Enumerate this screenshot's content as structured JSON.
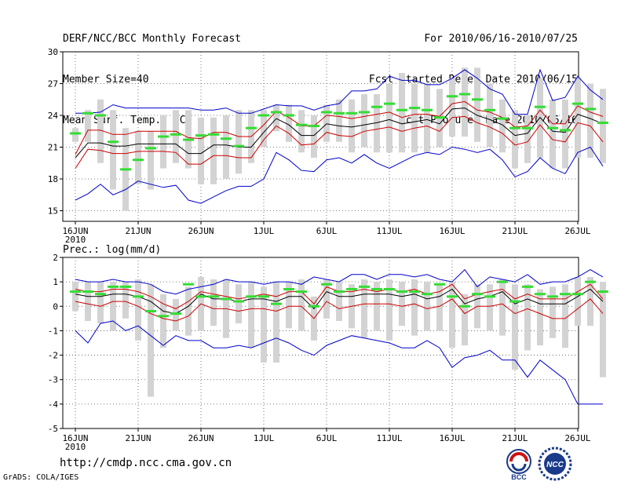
{
  "header": {
    "title": "DERF/NCC/BCC Monthly Forecast",
    "member_size": "Member Size=40",
    "variable_temp": "Mean Surf. Temp.: °C",
    "forecast_period": "For 2010/06/16-2010/07/25",
    "started_refer": "Fcst Started Refer Date 2010/06/15",
    "produced": "Fcst Produced Date 2010/06/16"
  },
  "footer": {
    "url": "http://cmdp.ncc.cma.gov.cn",
    "credit": "GrADS: COLA/IGES",
    "logo_left_text": "BCC",
    "logo_right_text": "NCC"
  },
  "colors": {
    "max_min": "#0000cc",
    "std": "#cc0000",
    "mean": "#000000",
    "median": "#33dd33",
    "box": "#d3d3d3"
  },
  "chart_data": [
    {
      "type": "line",
      "id": "temp",
      "title": "Mean Surf. Temp.: °C",
      "xlabel": "",
      "ylabel": "°C",
      "ylim": [
        14,
        30
      ],
      "yticks": [
        15,
        18,
        21,
        24,
        27,
        30
      ],
      "x_ticks": [
        "16JUN",
        "21JUN",
        "26JUN",
        "1JUL",
        "6JUL",
        "11JUL",
        "16JUL",
        "21JUL",
        "26JUL"
      ],
      "x_year": "2010",
      "grid": true,
      "series": [
        {
          "name": "max",
          "values": [
            16.0,
            16.6,
            17.5,
            16.5,
            17.0,
            17.8,
            17.5,
            17.2,
            17.4,
            16.0,
            15.7,
            16.3,
            16.9,
            17.3,
            17.3,
            18.0,
            20.5,
            19.8,
            18.8,
            18.7,
            19.8,
            20.0,
            19.5,
            20.3,
            19.5,
            19.0,
            19.6,
            20.2,
            20.5,
            20.3,
            21.0,
            20.8,
            20.5,
            20.8,
            19.8,
            18.2,
            18.7,
            20.0,
            19.0,
            18.5,
            20.5,
            21.0,
            19.2
          ]
        },
        {
          "name": "plus_std",
          "values": [
            20.3,
            22.6,
            22.6,
            22.2,
            22.2,
            22.5,
            22.5,
            22.5,
            22.5,
            21.9,
            21.8,
            22.4,
            22.4,
            22.0,
            22.0,
            23.1,
            24.4,
            23.8,
            23.0,
            23.0,
            24.0,
            23.9,
            23.7,
            23.9,
            24.1,
            24.3,
            23.8,
            24.1,
            24.1,
            23.9,
            25.1,
            25.3,
            24.5,
            24.3,
            23.8,
            22.9,
            23.0,
            24.5,
            23.2,
            23.2,
            24.9,
            24.3,
            23.9
          ]
        },
        {
          "name": "mean",
          "values": [
            20.0,
            21.4,
            21.4,
            21.1,
            21.1,
            21.3,
            21.3,
            21.3,
            21.3,
            20.4,
            20.4,
            21.2,
            21.2,
            21.0,
            21.0,
            22.4,
            23.7,
            23.1,
            22.1,
            22.1,
            23.2,
            23.0,
            22.9,
            23.1,
            23.3,
            23.6,
            23.2,
            23.4,
            23.6,
            23.2,
            24.6,
            24.7,
            24.0,
            23.6,
            23.1,
            22.1,
            22.3,
            23.8,
            22.5,
            22.4,
            24.1,
            23.7,
            23.2
          ]
        },
        {
          "name": "minus_std",
          "values": [
            19.0,
            20.8,
            20.7,
            20.4,
            20.4,
            20.6,
            20.6,
            20.6,
            20.5,
            19.4,
            19.4,
            20.2,
            20.2,
            20.0,
            20.0,
            21.7,
            23.0,
            22.3,
            21.2,
            21.3,
            22.4,
            22.1,
            22.0,
            22.5,
            22.7,
            22.9,
            22.5,
            22.8,
            23.0,
            22.5,
            23.8,
            23.9,
            23.3,
            22.9,
            22.3,
            21.2,
            21.5,
            23.1,
            21.7,
            21.5,
            23.3,
            23.0,
            21.5
          ]
        },
        {
          "name": "min",
          "values": [
            24.2,
            24.2,
            24.3,
            25.0,
            24.7,
            24.7,
            24.7,
            24.7,
            24.7,
            24.7,
            24.5,
            24.5,
            24.7,
            24.2,
            24.2,
            24.6,
            25.0,
            24.9,
            24.9,
            24.5,
            24.9,
            25.1,
            26.3,
            26.3,
            26.5,
            27.7,
            27.3,
            27.3,
            26.9,
            26.9,
            27.5,
            28.3,
            27.5,
            26.5,
            26.0,
            24.1,
            24.1,
            28.3,
            25.4,
            25.7,
            27.7,
            26.4,
            25.5
          ]
        },
        {
          "name": "median",
          "values": [
            22.3,
            24.2,
            24.0,
            21.5,
            18.9,
            19.8,
            20.9,
            22.0,
            22.2,
            21.7,
            22.1,
            22.2,
            21.8,
            21.1,
            22.8,
            24.0,
            24.3,
            24.0,
            23.1,
            23.0,
            24.3,
            24.2,
            24.2,
            24.3,
            24.8,
            25.1,
            24.5,
            24.7,
            24.5,
            23.8,
            25.8,
            26.0,
            25.5,
            24.5,
            23.7,
            22.8,
            22.8,
            24.8,
            22.8,
            22.6,
            25.1,
            24.6,
            23.3
          ]
        },
        {
          "name": "box_high",
          "values": [
            22.8,
            24.5,
            25.5,
            24.5,
            22.8,
            22.5,
            22.5,
            24.0,
            24.5,
            24.5,
            23.8,
            23.8,
            24.0,
            24.5,
            24.5,
            24.5,
            25.0,
            25.0,
            24.5,
            24.0,
            25.0,
            25.5,
            25.5,
            26.0,
            26.0,
            27.0,
            28.0,
            27.0,
            27.0,
            26.5,
            27.5,
            28.5,
            28.5,
            27.0,
            25.5,
            24.5,
            24.0,
            27.5,
            25.5,
            25.5,
            27.5,
            27.0,
            26.5
          ]
        },
        {
          "name": "box_low",
          "values": [
            21.5,
            21.5,
            19.5,
            17.0,
            15.0,
            17.5,
            17.0,
            19.0,
            19.5,
            19.0,
            17.5,
            17.5,
            18.0,
            18.5,
            19.5,
            21.0,
            22.5,
            21.5,
            20.5,
            20.0,
            21.5,
            21.5,
            20.5,
            21.0,
            20.5,
            20.5,
            20.5,
            20.5,
            20.5,
            21.0,
            22.0,
            22.0,
            21.5,
            21.0,
            20.5,
            19.0,
            19.5,
            20.0,
            19.0,
            19.0,
            20.0,
            20.0,
            19.5
          ]
        }
      ]
    },
    {
      "type": "line",
      "id": "prec",
      "title": "Prec.: log(mm/d)",
      "xlabel": "",
      "ylabel": "log(mm/d)",
      "ylim": [
        -5,
        2
      ],
      "yticks": [
        -5,
        -4,
        -3,
        -2,
        -1,
        0,
        1,
        2
      ],
      "x_ticks": [
        "16JUN",
        "21JUN",
        "26JUN",
        "1JUL",
        "6JUL",
        "11JUL",
        "16JUL",
        "21JUL",
        "26JUL"
      ],
      "x_year": "2010",
      "grid": true,
      "series": [
        {
          "name": "max",
          "values": [
            1.1,
            1.0,
            1.0,
            1.1,
            1.0,
            1.0,
            0.9,
            0.6,
            0.5,
            0.7,
            0.8,
            0.9,
            1.1,
            1.0,
            1.0,
            0.9,
            1.0,
            1.0,
            0.9,
            1.2,
            1.1,
            1.0,
            1.3,
            1.3,
            1.1,
            1.3,
            1.3,
            1.2,
            1.3,
            1.1,
            1.0,
            1.5,
            0.8,
            1.2,
            1.1,
            1.0,
            1.3,
            0.9,
            1.0,
            1.0,
            1.2,
            1.5,
            1.2
          ]
        },
        {
          "name": "plus_std",
          "values": [
            0.7,
            0.6,
            0.6,
            0.7,
            0.7,
            0.6,
            0.4,
            0.1,
            -0.1,
            0.2,
            0.6,
            0.5,
            0.4,
            0.3,
            0.4,
            0.5,
            0.4,
            0.6,
            0.6,
            0.1,
            0.8,
            0.6,
            0.6,
            0.7,
            0.6,
            0.7,
            0.6,
            0.7,
            0.5,
            0.6,
            0.9,
            0.3,
            0.5,
            0.6,
            0.7,
            0.3,
            0.5,
            0.3,
            0.3,
            0.3,
            0.6,
            0.9,
            0.3
          ]
        },
        {
          "name": "mean",
          "values": [
            0.5,
            0.4,
            0.4,
            0.5,
            0.5,
            0.4,
            0.2,
            -0.2,
            -0.3,
            0.0,
            0.5,
            0.3,
            0.3,
            0.2,
            0.3,
            0.3,
            0.2,
            0.4,
            0.4,
            -0.1,
            0.6,
            0.4,
            0.4,
            0.5,
            0.5,
            0.5,
            0.4,
            0.5,
            0.3,
            0.4,
            0.7,
            0.1,
            0.3,
            0.4,
            0.6,
            0.1,
            0.3,
            0.1,
            0.1,
            0.1,
            0.4,
            0.7,
            0.2
          ]
        },
        {
          "name": "minus_std",
          "values": [
            0.2,
            0.1,
            0.0,
            0.2,
            0.2,
            0.0,
            -0.3,
            -0.5,
            -0.6,
            -0.4,
            0.1,
            -0.1,
            -0.1,
            -0.2,
            -0.1,
            -0.1,
            -0.2,
            0.0,
            0.0,
            -0.5,
            0.2,
            -0.1,
            0.0,
            0.1,
            0.1,
            0.1,
            0.0,
            0.1,
            -0.1,
            0.0,
            0.3,
            -0.3,
            0.0,
            0.0,
            0.1,
            -0.3,
            -0.1,
            -0.3,
            -0.5,
            -0.5,
            -0.1,
            0.3,
            -0.3
          ]
        },
        {
          "name": "min",
          "values": [
            -1.0,
            -1.5,
            -0.7,
            -0.6,
            -1.0,
            -0.8,
            -1.2,
            -1.6,
            -1.2,
            -1.4,
            -1.4,
            -1.7,
            -1.7,
            -1.6,
            -1.7,
            -1.5,
            -1.3,
            -1.5,
            -1.8,
            -2.0,
            -1.6,
            -1.4,
            -1.2,
            -1.3,
            -1.4,
            -1.5,
            -1.7,
            -1.7,
            -1.4,
            -1.7,
            -2.5,
            -2.1,
            -2.0,
            -1.8,
            -2.2,
            -2.2,
            -2.9,
            -2.2,
            -2.6,
            -3.0,
            -4.0,
            -4.0,
            -4.0
          ]
        },
        {
          "name": "median",
          "values": [
            0.6,
            0.6,
            0.5,
            0.8,
            0.8,
            0.4,
            -0.2,
            -0.4,
            -0.3,
            0.9,
            0.4,
            0.4,
            0.3,
            0.2,
            0.4,
            0.4,
            0.1,
            0.7,
            0.6,
            0.0,
            0.9,
            0.6,
            0.7,
            0.8,
            0.7,
            0.7,
            0.6,
            0.6,
            0.5,
            0.9,
            0.4,
            0.0,
            0.5,
            0.4,
            1.0,
            0.2,
            0.8,
            0.5,
            0.4,
            0.5,
            0.5,
            1.0,
            0.6
          ]
        },
        {
          "name": "box_high",
          "values": [
            1.0,
            1.0,
            1.0,
            1.0,
            1.0,
            1.1,
            0.9,
            0.5,
            0.3,
            0.8,
            1.2,
            1.1,
            1.1,
            0.9,
            1.0,
            0.8,
            1.0,
            1.0,
            1.1,
            0.4,
            1.1,
            1.0,
            0.9,
            1.1,
            1.0,
            1.1,
            1.0,
            1.1,
            1.0,
            0.9,
            1.0,
            0.5,
            0.9,
            0.9,
            1.1,
            0.9,
            0.9,
            0.7,
            0.8,
            0.9,
            1.2,
            1.2,
            1.0
          ]
        },
        {
          "name": "box_low",
          "values": [
            -0.2,
            -0.6,
            -0.7,
            -1.0,
            -0.5,
            -1.4,
            -3.7,
            -1.7,
            -1.0,
            -1.2,
            -1.0,
            -0.8,
            -1.3,
            -0.7,
            -1.7,
            -2.3,
            -2.3,
            -0.9,
            -1.0,
            -1.4,
            -0.5,
            -0.6,
            -0.9,
            -1.3,
            -1.0,
            -1.4,
            -0.8,
            -1.2,
            -1.0,
            -1.0,
            -1.7,
            -1.6,
            -0.9,
            -1.0,
            -1.2,
            -2.6,
            -1.8,
            -1.6,
            -1.3,
            -1.7,
            -0.8,
            -0.8,
            -2.9
          ]
        }
      ]
    }
  ]
}
